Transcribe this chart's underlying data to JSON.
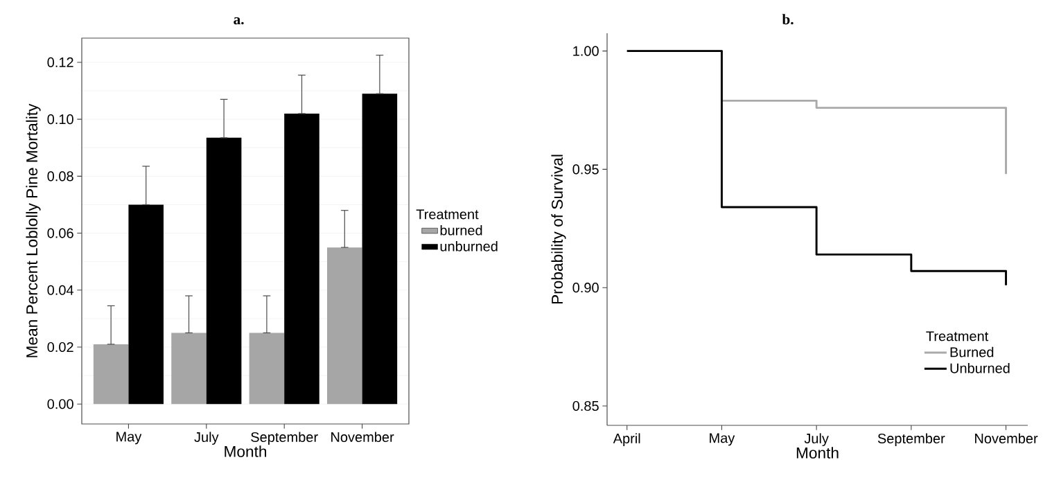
{
  "chart_data": [
    {
      "type": "bar",
      "title": "a.",
      "xlabel": "Month",
      "ylabel": "Mean Percent Loblolly Pine Mortality",
      "legend_title": "Treatment",
      "legend": "right",
      "grid": "y",
      "categories": [
        "May",
        "July",
        "September",
        "November"
      ],
      "series": [
        {
          "name": "burned",
          "color": "#a6a6a6",
          "values": [
            0.021,
            0.025,
            0.025,
            0.055
          ],
          "errors": [
            [
              0.021,
              0.0345
            ],
            [
              0.025,
              0.038
            ],
            [
              0.025,
              0.038
            ],
            [
              0.055,
              0.068
            ]
          ]
        },
        {
          "name": "unburned",
          "color": "#000000",
          "values": [
            0.07,
            0.0935,
            0.102,
            0.109
          ],
          "errors": [
            [
              0.07,
              0.0835
            ],
            [
              0.0935,
              0.107
            ],
            [
              0.102,
              0.1155
            ],
            [
              0.109,
              0.1225
            ]
          ]
        }
      ],
      "ylim": [
        -0.007,
        0.1285
      ],
      "yticks": [
        {
          "value": 0,
          "label": "0.00"
        },
        {
          "value": 0.02,
          "label": "0.02"
        },
        {
          "value": 0.04,
          "label": "0.04"
        },
        {
          "value": 0.06,
          "label": "0.06"
        },
        {
          "value": 0.08,
          "label": "0.08"
        },
        {
          "value": 0.1,
          "label": "0.10"
        },
        {
          "value": 0.12,
          "label": "0.12"
        }
      ]
    },
    {
      "type": "step",
      "title": "b.",
      "xlabel": "Month",
      "ylabel": "Probability of Survival",
      "legend_title": "Treatment",
      "legend": "bottom right",
      "categories": [
        "April",
        "May",
        "July",
        "September",
        "November"
      ],
      "series": [
        {
          "name": "Burned",
          "color": "#aaaaaa",
          "values": [
            1.0,
            0.979,
            0.976,
            0.976,
            0.948
          ]
        },
        {
          "name": "Unburned",
          "color": "#000000",
          "values": [
            1.0,
            0.934,
            0.914,
            0.907,
            0.901
          ]
        }
      ],
      "ylim": [
        0.8418,
        1.0075
      ],
      "yticks": [
        {
          "value": 0.85,
          "label": "0.85"
        },
        {
          "value": 0.9,
          "label": "0.90"
        },
        {
          "value": 0.95,
          "label": "0.95"
        },
        {
          "value": 1.0,
          "label": "1.00"
        }
      ]
    }
  ]
}
